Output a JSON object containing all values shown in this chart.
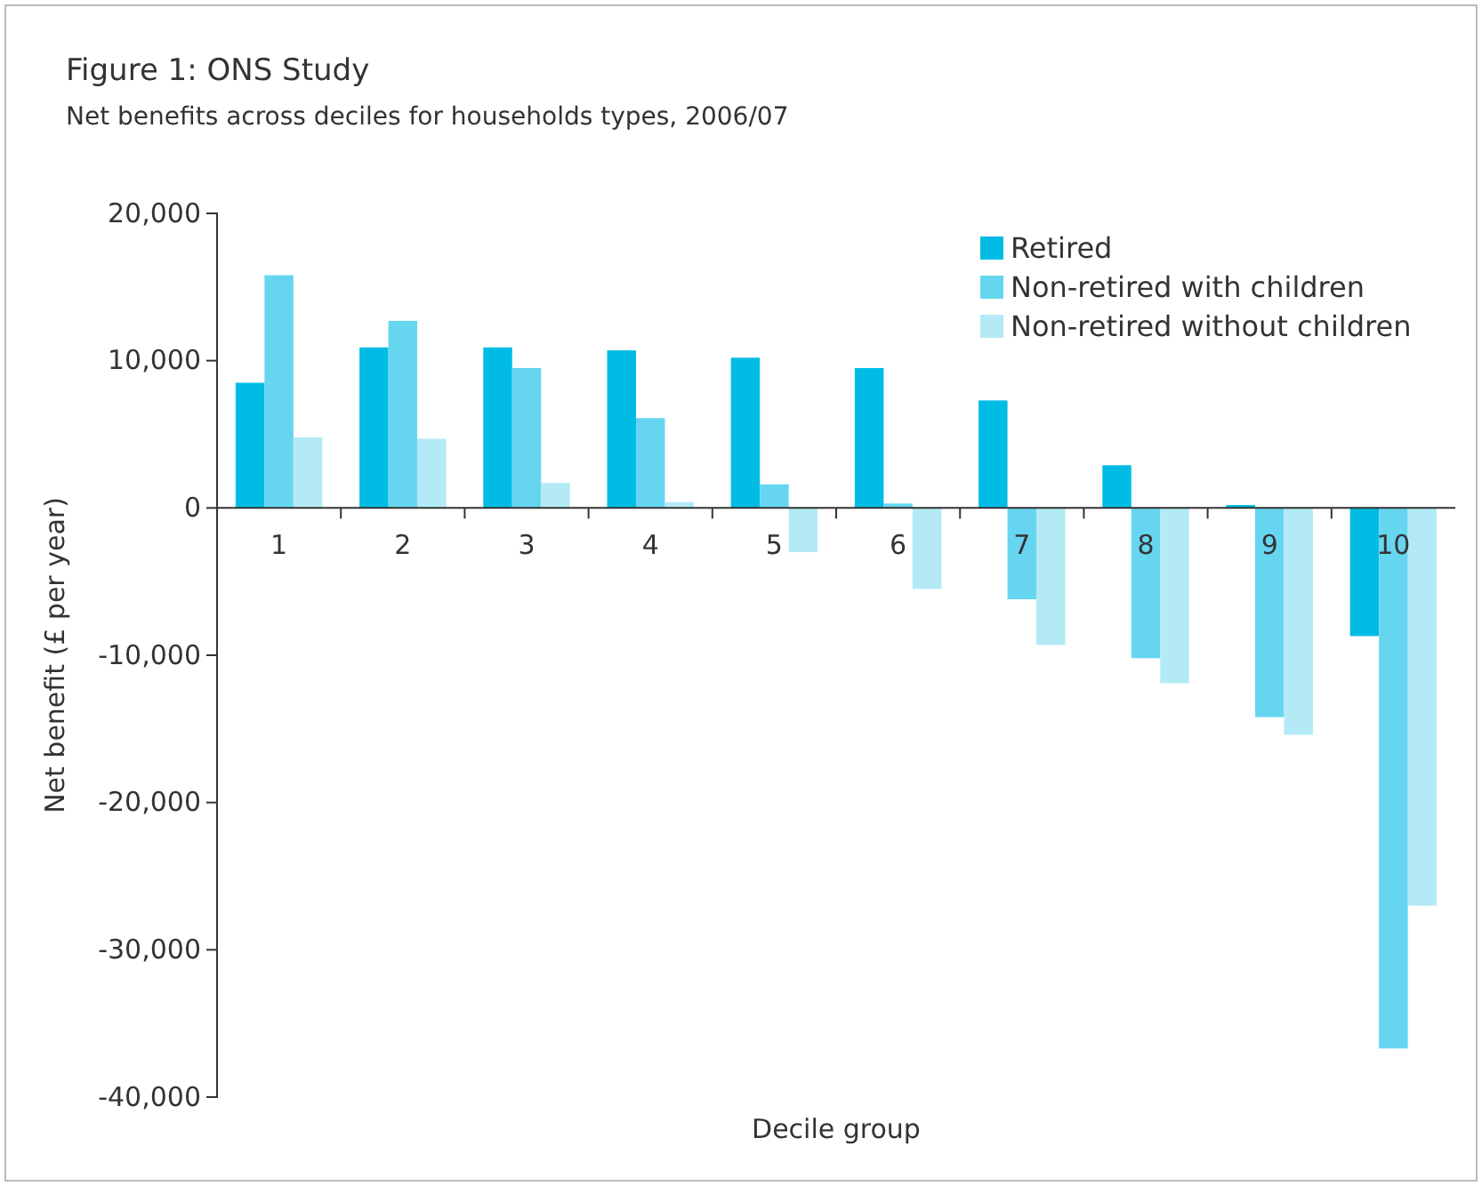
{
  "chart_data": {
    "type": "bar",
    "title": "Figure 1: ONS Study",
    "subtitle": "Net benefits across deciles for households types, 2006/07",
    "xlabel": "Decile group",
    "ylabel": "Net benefit (£ per year)",
    "categories": [
      "1",
      "2",
      "3",
      "4",
      "5",
      "6",
      "7",
      "8",
      "9",
      "10"
    ],
    "series": [
      {
        "name": "Retired",
        "color": "#00bce4",
        "values": [
          8500,
          10900,
          10900,
          10700,
          10200,
          9500,
          7300,
          2900,
          200,
          -8700
        ]
      },
      {
        "name": "Non-retired with children",
        "color": "#66d6f0",
        "values": [
          15800,
          12700,
          9500,
          6100,
          1600,
          300,
          -6200,
          -10200,
          -14200,
          -36700
        ]
      },
      {
        "name": "Non-retired without children",
        "color": "#b3eaf6",
        "values": [
          4800,
          4700,
          1700,
          400,
          -3000,
          -5500,
          -9300,
          -11900,
          -15400,
          -27000
        ]
      }
    ],
    "ylim": [
      -40000,
      20000
    ],
    "yticks": [
      {
        "value": -40000,
        "label": "-40,000"
      },
      {
        "value": -30000,
        "label": "-30,000"
      },
      {
        "value": -20000,
        "label": "-20,000"
      },
      {
        "value": -10000,
        "label": "-10,000"
      },
      0,
      {
        "value": 10000,
        "label": "10,000"
      },
      {
        "value": 20000,
        "label": "20,000"
      }
    ],
    "legend": "top right",
    "grid": false
  }
}
